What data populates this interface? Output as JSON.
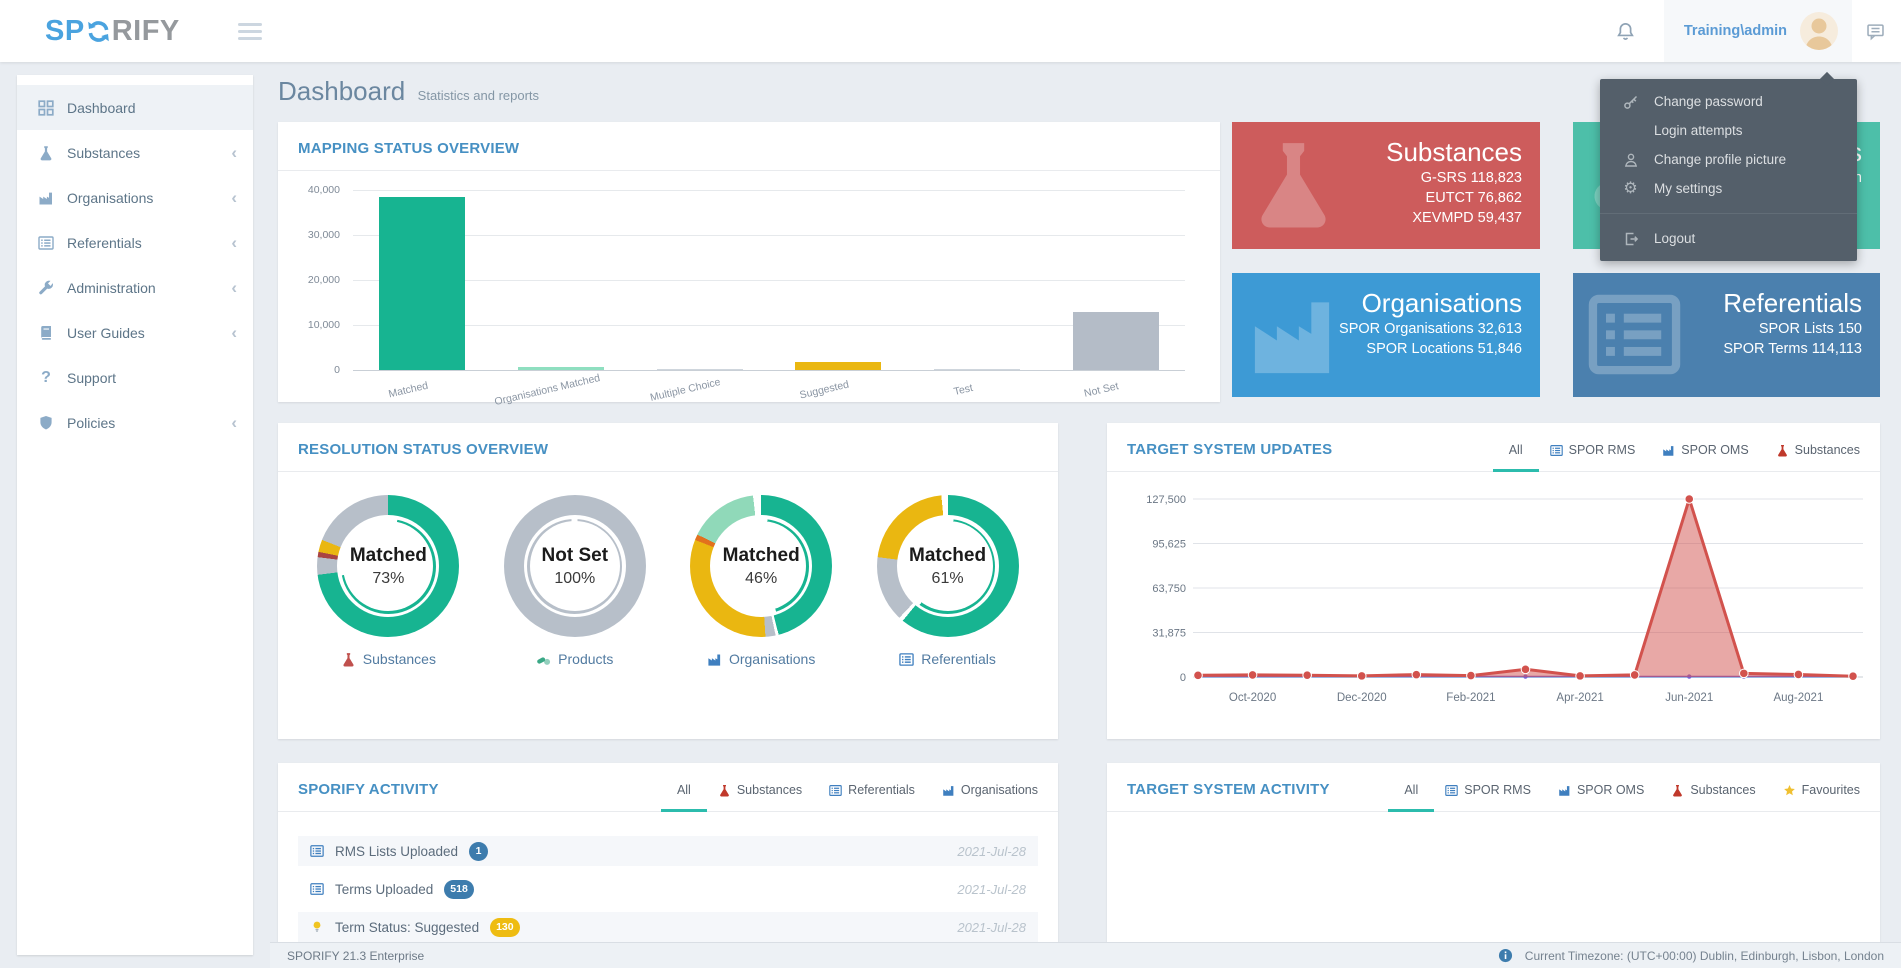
{
  "navbar": {
    "logo": {
      "prefix": "SP",
      "suffix": "RIFY"
    },
    "user": "Training\\admin"
  },
  "user_menu": {
    "items": [
      {
        "icon": "key",
        "label": "Change password"
      },
      {
        "icon": "shieldx",
        "label": "Login attempts"
      },
      {
        "icon": "person",
        "label": "Change profile picture"
      },
      {
        "icon": "gear",
        "label": "My settings"
      },
      {
        "icon": "logout",
        "label": "Logout",
        "divider_before": true
      }
    ]
  },
  "sidebar": {
    "items": [
      {
        "icon": "grid",
        "label": "Dashboard",
        "active": true
      },
      {
        "icon": "flask",
        "label": "Substances",
        "chevron": true
      },
      {
        "icon": "factory",
        "label": "Organisations",
        "chevron": true
      },
      {
        "icon": "list",
        "label": "Referentials",
        "chevron": true
      },
      {
        "icon": "wrench",
        "label": "Administration",
        "chevron": true
      },
      {
        "icon": "book",
        "label": "User Guides",
        "chevron": true
      },
      {
        "icon": "question",
        "label": "Support"
      },
      {
        "icon": "shield",
        "label": "Policies",
        "chevron": true
      }
    ]
  },
  "page": {
    "title": "Dashboard",
    "subtitle": "Statistics and reports"
  },
  "stat_cards": [
    {
      "key": "substances",
      "color": "#cd5c5c",
      "icon": "flask",
      "title": "Substances",
      "lines": [
        "G-SRS 118,823",
        "EUTCT 76,862",
        "XEVMPD 59,437"
      ]
    },
    {
      "key": "partial-green",
      "color": "#4dbfa9",
      "icon": "pills",
      "title": "ts",
      "lines": [
        "on"
      ]
    },
    {
      "key": "organisations",
      "color": "#3d9ad5",
      "icon": "factory",
      "title": "Organisations",
      "lines": [
        "SPOR Organisations 32,613",
        "SPOR Locations 51,846"
      ]
    },
    {
      "key": "referentials",
      "color": "#4b80ae",
      "icon": "list",
      "title": "Referentials",
      "lines": [
        "SPOR Lists 150",
        "SPOR Terms 114,113"
      ]
    }
  ],
  "panels": {
    "mapping": {
      "title": "MAPPING STATUS OVERVIEW"
    },
    "resolution": {
      "title": "RESOLUTION STATUS OVERVIEW"
    },
    "target_updates": {
      "title": "TARGET SYSTEM UPDATES",
      "tabs": [
        {
          "label": "All",
          "active": true
        },
        {
          "label": "SPOR RMS",
          "icon": "list",
          "icon_color": "#3f7fbf"
        },
        {
          "label": "SPOR OMS",
          "icon": "factory",
          "icon_color": "#3f7fbf"
        },
        {
          "label": "Substances",
          "icon": "flask",
          "icon_color": "#c0392b"
        }
      ]
    },
    "activity": {
      "title": "SPORIFY ACTIVITY",
      "tabs": [
        {
          "label": "All",
          "active": true
        },
        {
          "label": "Substances",
          "icon": "flask",
          "icon_color": "#c0392b"
        },
        {
          "label": "Referentials",
          "icon": "list",
          "icon_color": "#3f7fbf"
        },
        {
          "label": "Organisations",
          "icon": "factory",
          "icon_color": "#3f7fbf"
        }
      ],
      "rows": [
        {
          "icon": "list",
          "icon_color": "#3f7fbf",
          "label": "RMS Lists Uploaded",
          "badge": "1",
          "badge_color": "#3d7cad",
          "date": "2021-Jul-28"
        },
        {
          "icon": "list",
          "icon_color": "#3f7fbf",
          "label": "Terms Uploaded",
          "badge": "518",
          "badge_color": "#3d7cad",
          "date": "2021-Jul-28"
        },
        {
          "icon": "bulb",
          "icon_color": "#f0c420",
          "label": "Term Status: Suggested",
          "badge": "130",
          "badge_color": "#eebc12",
          "date": "2021-Jul-28"
        }
      ]
    },
    "target_activity": {
      "title": "TARGET SYSTEM ACTIVITY",
      "tabs": [
        {
          "label": "All",
          "active": true
        },
        {
          "label": "SPOR RMS",
          "icon": "list",
          "icon_color": "#3f7fbf"
        },
        {
          "label": "SPOR OMS",
          "icon": "factory",
          "icon_color": "#3f7fbf"
        },
        {
          "label": "Substances",
          "icon": "flask",
          "icon_color": "#c0392b"
        },
        {
          "label": "Favourites",
          "icon": "star",
          "icon_color": "#f0c030"
        }
      ]
    }
  },
  "chart_data": [
    {
      "id": "mapping_status",
      "type": "bar",
      "title": "MAPPING STATUS OVERVIEW",
      "categories": [
        "Matched",
        "Organisations Matched",
        "Multiple Choice",
        "Suggested",
        "Test",
        "Not Set"
      ],
      "values": [
        38500,
        600,
        50,
        1800,
        60,
        13000
      ],
      "colors": [
        "#17b491",
        "#8fdfc0",
        "#cfd6dd",
        "#eab711",
        "#cfd6dd",
        "#b4bcc7"
      ],
      "ylim": [
        0,
        40000
      ],
      "yticks": [
        "0",
        "10,000",
        "20,000",
        "30,000",
        "40,000"
      ],
      "grid": true,
      "legend": false
    },
    {
      "id": "resolution_status",
      "type": "donut_group",
      "title": "RESOLUTION STATUS OVERVIEW",
      "donuts": [
        {
          "label": "Substances",
          "icon": "flask",
          "icon_color": "#c0504d",
          "center_title": "Matched",
          "center_value": "73%",
          "segments": [
            {
              "color": "#17b491",
              "pct": 73
            },
            {
              "color": "#b7bfc9",
              "pct": 4
            },
            {
              "color": "#a94442",
              "pct": 1.2
            },
            {
              "color": "#eab711",
              "pct": 2.8
            },
            {
              "color": "#b7bfc9",
              "pct": 19
            }
          ],
          "inner_ring": {
            "color": "#17b491",
            "from": 3,
            "to": 72
          }
        },
        {
          "label": "Products",
          "icon": "pills",
          "icon_color": "#3aa886",
          "center_title": "Not Set",
          "center_value": "100%",
          "segments": [
            {
              "color": "#b7bfc9",
              "pct": 100
            }
          ],
          "inner_ring": {
            "color": "#b7bfc9",
            "from": 1,
            "to": 99
          }
        },
        {
          "label": "Organisations",
          "icon": "factory",
          "icon_color": "#3f7fbf",
          "center_title": "Matched",
          "center_value": "46%",
          "segments": [
            {
              "color": "#17b491",
              "pct": 46
            },
            {
              "color": "#ffffff",
              "pct": 0.7
            },
            {
              "color": "#b7bfc9",
              "pct": 2.3
            },
            {
              "color": "#eab711",
              "pct": 32
            },
            {
              "color": "#e2711d",
              "pct": 1.3
            },
            {
              "color": "#90d9b9",
              "pct": 15.9
            },
            {
              "color": "#ffffff",
              "pct": 1.8
            }
          ],
          "inner_ring": {
            "color": "#17b491",
            "from": 2,
            "to": 45
          }
        },
        {
          "label": "Referentials",
          "icon": "list",
          "icon_color": "#3f7fbf",
          "center_title": "Matched",
          "center_value": "61%",
          "segments": [
            {
              "color": "#17b491",
              "pct": 61
            },
            {
              "color": "#ffffff",
              "pct": 1
            },
            {
              "color": "#b7bfc9",
              "pct": 15
            },
            {
              "color": "#eab711",
              "pct": 21.5
            },
            {
              "color": "#ffffff",
              "pct": 1.5
            }
          ],
          "inner_ring": {
            "color": "#17b491",
            "from": 2,
            "to": 60
          }
        }
      ]
    },
    {
      "id": "target_system_updates",
      "type": "area",
      "title": "TARGET SYSTEM UPDATES",
      "ylim": [
        0,
        127500
      ],
      "yticks": [
        "0",
        "31,875",
        "63,750",
        "95,625",
        "127,500"
      ],
      "xticks": [
        {
          "index": 1,
          "label": "Oct-2020"
        },
        {
          "index": 3,
          "label": "Dec-2020"
        },
        {
          "index": 5,
          "label": "Feb-2021"
        },
        {
          "index": 7,
          "label": "Apr-2021"
        },
        {
          "index": 9,
          "label": "Jun-2021"
        },
        {
          "index": 11,
          "label": "Aug-2021"
        }
      ],
      "series": [
        {
          "name": "series-cyan",
          "color": "#39c3cf",
          "values": [
            120,
            120,
            120,
            120,
            120,
            120,
            120,
            120,
            120,
            120,
            120,
            120,
            120
          ]
        },
        {
          "name": "series-purple",
          "color": "#7a5fd0",
          "values": [
            300,
            300,
            300,
            300,
            300,
            300,
            300,
            300,
            300,
            300,
            300,
            300,
            300
          ],
          "markers": true
        },
        {
          "name": "series-red",
          "color": "#d2524d",
          "fill": "rgba(210,82,77,0.5)",
          "markers": true,
          "values": [
            1200,
            1500,
            1300,
            800,
            1700,
            1000,
            5500,
            800,
            1500,
            127500,
            2600,
            1800,
            600
          ]
        }
      ],
      "grid": true,
      "legend": false
    }
  ],
  "footer": {
    "left": "SPORIFY 21.3 Enterprise",
    "right": "Current Timezone: (UTC+00:00) Dublin, Edinburgh, Lisbon, London"
  }
}
